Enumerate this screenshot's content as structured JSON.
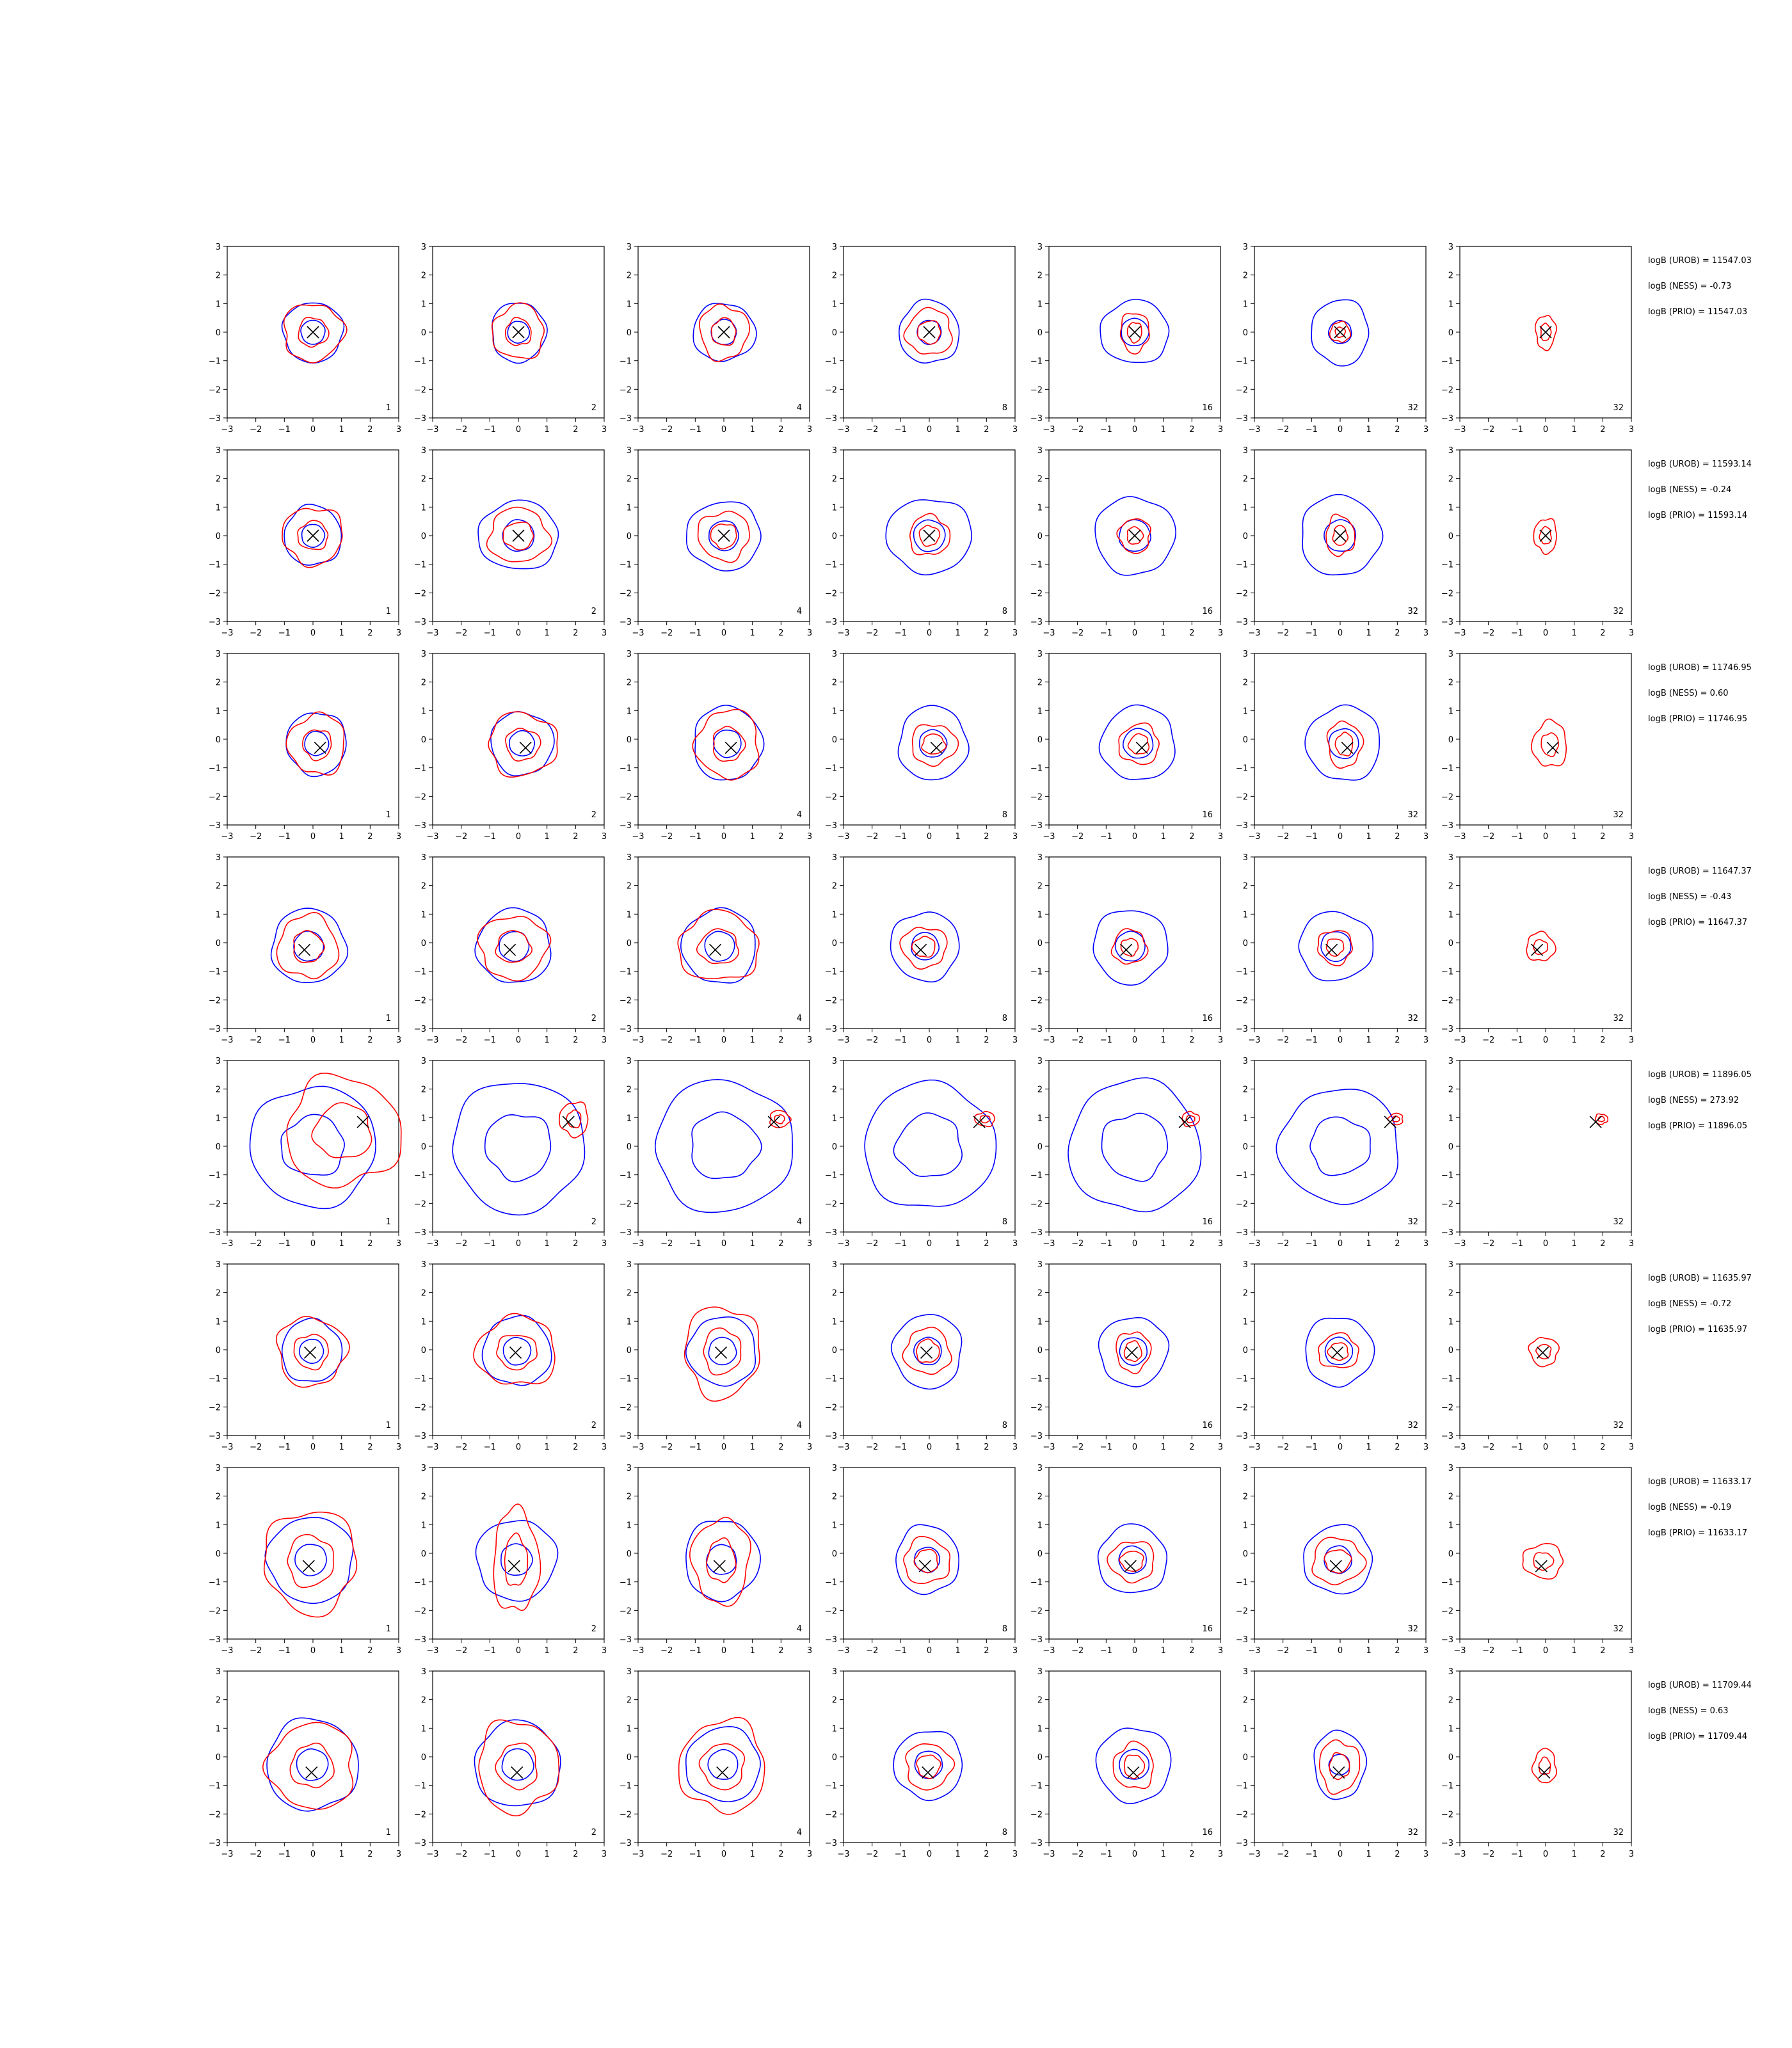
{
  "chart_data": {
    "type": "contour-grid",
    "rows": 8,
    "cols": 7,
    "xlim": [
      -3,
      3
    ],
    "ylim": [
      -3,
      3
    ],
    "ticks": [
      -3,
      -2,
      -1,
      0,
      1,
      2,
      3
    ],
    "tick_labels": [
      "−3",
      "−2",
      "−1",
      "0",
      "1",
      "2",
      "3"
    ],
    "column_labels": [
      "1",
      "2",
      "4",
      "8",
      "16",
      "32",
      "32"
    ],
    "colors": {
      "blue": "#0000ff",
      "red": "#ff0000",
      "marker": "#000000"
    },
    "panel_rows": [
      {
        "marker": [
          0.0,
          0.0
        ],
        "blue": [
          [
            1.05,
            1.05
          ],
          [
            0.95,
            1.05
          ],
          [
            1.1,
            1.0
          ],
          [
            1.05,
            1.1
          ],
          [
            1.2,
            1.1
          ],
          [
            1.0,
            1.15
          ],
          [
            0,
            0
          ]
        ],
        "red": [
          [
            1.05,
            1.0
          ],
          [
            0.9,
            0.95
          ],
          [
            0.85,
            0.95
          ],
          [
            0.8,
            0.8
          ],
          [
            0.5,
            0.7
          ],
          [
            0.35,
            0.35
          ],
          [
            0.35,
            0.6
          ]
        ],
        "stats": [
          "logB (UROB) = 11547.03",
          "logB (NESS) = -0.73",
          "logB (PRIO) = 11547.03"
        ]
      },
      {
        "marker": [
          0.0,
          0.0
        ],
        "blue": [
          [
            1.0,
            1.05
          ],
          [
            1.4,
            1.2
          ],
          [
            1.3,
            1.2
          ],
          [
            1.5,
            1.3
          ],
          [
            1.4,
            1.35
          ],
          [
            1.4,
            1.4
          ],
          [
            0,
            0
          ]
        ],
        "red": [
          [
            1.05,
            1.0
          ],
          [
            1.05,
            0.95
          ],
          [
            0.9,
            0.85
          ],
          [
            0.7,
            0.7
          ],
          [
            0.55,
            0.6
          ],
          [
            0.5,
            0.7
          ],
          [
            0.4,
            0.6
          ]
        ],
        "stats": [
          "logB (UROB) = 11593.14",
          "logB (NESS) = -0.24",
          "logB (PRIO) = 11593.14"
        ]
      },
      {
        "marker": [
          0.25,
          -0.3
        ],
        "blue": [
          [
            1.05,
            1.1
          ],
          [
            1.1,
            1.1
          ],
          [
            1.2,
            1.3
          ],
          [
            1.2,
            1.3
          ],
          [
            1.3,
            1.3
          ],
          [
            1.3,
            1.3
          ],
          [
            0,
            0
          ]
        ],
        "red": [
          [
            1.0,
            1.05
          ],
          [
            1.2,
            1.1
          ],
          [
            1.1,
            1.2
          ],
          [
            0.8,
            0.7
          ],
          [
            0.7,
            0.7
          ],
          [
            0.6,
            0.8
          ],
          [
            0.6,
            0.8
          ]
        ],
        "stats": [
          "logB (UROB) = 11746.95",
          "logB (NESS) = 0.60",
          "logB (PRIO) = 11746.95"
        ]
      },
      {
        "marker": [
          -0.3,
          -0.25
        ],
        "blue": [
          [
            1.3,
            1.3
          ],
          [
            1.3,
            1.3
          ],
          [
            1.3,
            1.3
          ],
          [
            1.2,
            1.2
          ],
          [
            1.3,
            1.3
          ],
          [
            1.3,
            1.2
          ],
          [
            0,
            0
          ]
        ],
        "red": [
          [
            1.05,
            1.1
          ],
          [
            1.2,
            1.1
          ],
          [
            1.4,
            1.2
          ],
          [
            0.8,
            0.7
          ],
          [
            0.6,
            0.6
          ],
          [
            0.6,
            0.6
          ],
          [
            0.5,
            0.5
          ]
        ],
        "stats": [
          "logB (UROB) = 11647.37",
          "logB (NESS) = -0.43",
          "logB (PRIO) = 11647.37"
        ]
      },
      {
        "marker": [
          1.75,
          0.85
        ],
        "blue": [
          [
            2.2,
            2.1
          ],
          [
            2.3,
            2.3
          ],
          [
            2.4,
            2.3
          ],
          [
            2.3,
            2.2
          ],
          [
            2.3,
            2.3
          ],
          [
            2.1,
            2.0
          ],
          [
            0,
            0
          ]
        ],
        "red": [
          [
            2.0,
            1.9
          ],
          [
            0.5,
            0.6
          ],
          [
            0.35,
            0.3
          ],
          [
            0.35,
            0.25
          ],
          [
            0.3,
            0.25
          ],
          [
            0.25,
            0.2
          ],
          [
            0.22,
            0.18
          ]
        ],
        "stats": [
          "logB (UROB) = 11896.05",
          "logB (NESS) = 273.92",
          "logB (PRIO) = 11896.05"
        ]
      },
      {
        "marker": [
          -0.1,
          -0.1
        ],
        "blue": [
          [
            1.05,
            1.1
          ],
          [
            1.2,
            1.2
          ],
          [
            1.2,
            1.2
          ],
          [
            1.2,
            1.3
          ],
          [
            1.2,
            1.2
          ],
          [
            1.2,
            1.2
          ],
          [
            0,
            0
          ]
        ],
        "red": [
          [
            1.2,
            1.2
          ],
          [
            1.4,
            1.2
          ],
          [
            1.3,
            1.6
          ],
          [
            0.8,
            0.8
          ],
          [
            0.6,
            0.7
          ],
          [
            0.7,
            0.6
          ],
          [
            0.5,
            0.5
          ]
        ],
        "stats": [
          "logB (UROB) = 11635.97",
          "logB (NESS) = -0.72",
          "logB (PRIO) = 11635.97"
        ]
      },
      {
        "marker": [
          -0.15,
          -0.45
        ],
        "blue": [
          [
            1.5,
            1.5
          ],
          [
            1.4,
            1.4
          ],
          [
            1.3,
            1.4
          ],
          [
            1.1,
            1.2
          ],
          [
            1.2,
            1.2
          ],
          [
            1.2,
            1.2
          ],
          [
            0,
            0
          ]
        ],
        "red": [
          [
            1.6,
            1.8
          ],
          [
            0.8,
            1.8
          ],
          [
            1.0,
            1.5
          ],
          [
            0.8,
            0.8
          ],
          [
            0.8,
            0.7
          ],
          [
            0.9,
            0.8
          ],
          [
            0.7,
            0.6
          ]
        ],
        "stats": [
          "logB (UROB) = 11633.17",
          "logB (NESS) = -0.19",
          "logB (PRIO) = 11633.17"
        ]
      },
      {
        "marker": [
          -0.05,
          -0.55
        ],
        "blue": [
          [
            1.6,
            1.6
          ],
          [
            1.5,
            1.5
          ],
          [
            1.3,
            1.3
          ],
          [
            1.2,
            1.2
          ],
          [
            1.3,
            1.3
          ],
          [
            0.9,
            1.2
          ],
          [
            0,
            0
          ]
        ],
        "red": [
          [
            1.5,
            1.5
          ],
          [
            1.4,
            1.6
          ],
          [
            1.5,
            1.6
          ],
          [
            0.8,
            0.8
          ],
          [
            0.7,
            0.8
          ],
          [
            0.7,
            0.9
          ],
          [
            0.4,
            0.6
          ]
        ],
        "stats": [
          "logB (UROB) = 11709.44",
          "logB (NESS) = 0.63",
          "logB (PRIO) = 11709.44"
        ]
      }
    ]
  }
}
